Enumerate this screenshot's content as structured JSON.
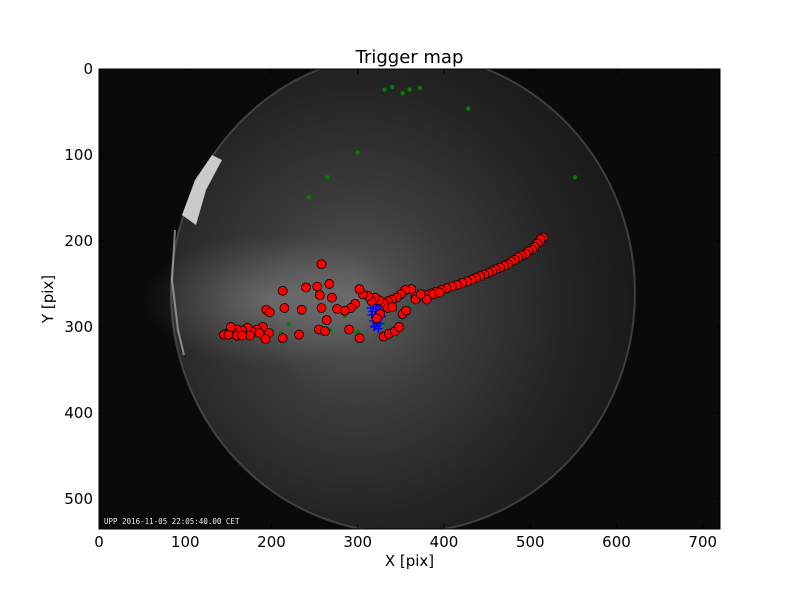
{
  "chart_data": {
    "type": "scatter",
    "title": "Trigger map",
    "xlabel": "X [pix]",
    "ylabel": "Y [pix]",
    "xlim": [
      0,
      720
    ],
    "ylim": [
      0,
      535
    ],
    "y_inverted": true,
    "xticks": [
      0,
      100,
      200,
      300,
      400,
      500,
      600,
      700
    ],
    "yticks": [
      0,
      100,
      200,
      300,
      400,
      500
    ],
    "background": "all-sky camera image",
    "image_timestamp": "UPP 2016-11-05 22:05:40.00 CET",
    "series": [
      {
        "marker": "circle",
        "color": "#ff0000",
        "edge_color": "#000000",
        "points": [
          [
            515,
            196
          ],
          [
            512,
            198
          ],
          [
            508,
            203
          ],
          [
            505,
            207
          ],
          [
            502,
            210
          ],
          [
            498,
            212
          ],
          [
            495,
            215
          ],
          [
            490,
            217
          ],
          [
            486,
            219
          ],
          [
            482,
            222
          ],
          [
            478,
            224
          ],
          [
            474,
            227
          ],
          [
            470,
            229
          ],
          [
            465,
            231
          ],
          [
            460,
            233
          ],
          [
            456,
            235
          ],
          [
            452,
            237
          ],
          [
            447,
            239
          ],
          [
            442,
            241
          ],
          [
            437,
            243
          ],
          [
            432,
            245
          ],
          [
            427,
            247
          ],
          [
            421,
            249
          ],
          [
            415,
            251
          ],
          [
            409,
            253
          ],
          [
            403,
            255
          ],
          [
            397,
            257
          ],
          [
            391,
            259
          ],
          [
            385,
            261
          ],
          [
            379,
            263
          ],
          [
            373,
            264
          ],
          [
            367,
            265
          ],
          [
            362,
            256
          ],
          [
            355,
            257
          ],
          [
            350,
            262
          ],
          [
            345,
            266
          ],
          [
            340,
            268
          ],
          [
            335,
            270
          ],
          [
            330,
            272
          ],
          [
            325,
            269
          ],
          [
            320,
            266
          ],
          [
            316,
            270
          ],
          [
            312,
            264
          ],
          [
            306,
            262
          ],
          [
            302,
            256
          ],
          [
            297,
            273
          ],
          [
            292,
            278
          ],
          [
            285,
            281
          ],
          [
            276,
            279
          ],
          [
            270,
            266
          ],
          [
            258,
            227
          ],
          [
            267,
            250
          ],
          [
            253,
            253
          ],
          [
            240,
            254
          ],
          [
            256,
            263
          ],
          [
            213,
            258
          ],
          [
            194,
            280
          ],
          [
            198,
            283
          ],
          [
            215,
            278
          ],
          [
            235,
            280
          ],
          [
            258,
            278
          ],
          [
            264,
            292
          ],
          [
            255,
            303
          ],
          [
            262,
            305
          ],
          [
            290,
            303
          ],
          [
            302,
            313
          ],
          [
            232,
            309
          ],
          [
            213,
            313
          ],
          [
            197,
            307
          ],
          [
            190,
            300
          ],
          [
            183,
            303
          ],
          [
            178,
            306
          ],
          [
            172,
            301
          ],
          [
            166,
            304
          ],
          [
            160,
            303
          ],
          [
            155,
            306
          ],
          [
            150,
            307
          ],
          [
            145,
            309
          ],
          [
            160,
            310
          ],
          [
            175,
            310
          ],
          [
            186,
            307
          ],
          [
            193,
            314
          ],
          [
            150,
            309
          ],
          [
            153,
            300
          ],
          [
            166,
            310
          ],
          [
            330,
            311
          ],
          [
            336,
            308
          ],
          [
            343,
            305
          ],
          [
            348,
            300
          ],
          [
            352,
            285
          ],
          [
            335,
            278
          ],
          [
            326,
            285
          ],
          [
            322,
            290
          ],
          [
            356,
            281
          ],
          [
            340,
            277
          ],
          [
            367,
            268
          ],
          [
            388,
            262
          ],
          [
            395,
            260
          ],
          [
            380,
            268
          ],
          [
            373,
            262
          ]
        ]
      },
      {
        "marker": "plus",
        "color": "#0000ff",
        "points": [
          [
            320,
            267
          ],
          [
            322,
            270
          ],
          [
            318,
            273
          ],
          [
            324,
            276
          ],
          [
            321,
            279
          ],
          [
            317,
            282
          ],
          [
            325,
            284
          ],
          [
            320,
            287
          ],
          [
            323,
            290
          ],
          [
            318,
            293
          ],
          [
            326,
            296
          ],
          [
            320,
            299
          ],
          [
            324,
            302
          ],
          [
            330,
            281
          ],
          [
            316,
            286
          ],
          [
            328,
            288
          ],
          [
            322,
            294
          ],
          [
            319,
            300
          ],
          [
            327,
            275
          ],
          [
            315,
            278
          ]
        ]
      },
      {
        "marker": "dot",
        "color": "#008000",
        "points": [
          [
            331,
            24
          ],
          [
            340,
            21
          ],
          [
            352,
            28
          ],
          [
            360,
            24
          ],
          [
            372,
            22
          ],
          [
            428,
            46
          ],
          [
            300,
            97
          ],
          [
            265,
            126
          ],
          [
            243,
            149
          ],
          [
            552,
            126
          ],
          [
            400,
            253
          ],
          [
            395,
            262
          ],
          [
            365,
            253
          ],
          [
            285,
            287
          ],
          [
            274,
            280
          ],
          [
            220,
            297
          ],
          [
            268,
            304
          ],
          [
            211,
            307
          ],
          [
            192,
            299
          ],
          [
            330,
            297
          ],
          [
            358,
            276
          ],
          [
            310,
            262
          ],
          [
            344,
            309
          ],
          [
            300,
            306
          ],
          [
            195,
            310
          ]
        ]
      }
    ]
  }
}
